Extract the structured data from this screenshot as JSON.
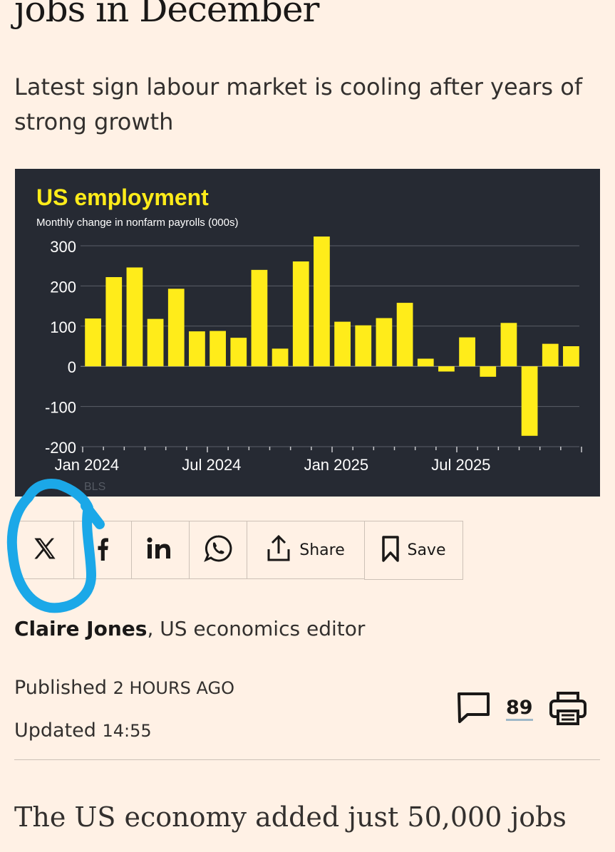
{
  "article": {
    "headline_tail": "jobs in December",
    "standfirst": "Latest sign labour market is cooling after years of strong growth",
    "byline": {
      "author": "Claire Jones",
      "role": ", US economics editor"
    },
    "published_label": "Published",
    "published_time": "2 HOURS AGO",
    "updated_label": "Updated",
    "updated_time": "14:55",
    "comment_count": "89",
    "body_start": "The US economy added just 50,000 jobs"
  },
  "share": {
    "share_label": "Share",
    "save_label": "Save",
    "icons": [
      "x-icon",
      "facebook-icon",
      "linkedin-icon",
      "whatsapp-icon",
      "share-icon",
      "bookmark-icon",
      "comment-icon",
      "print-icon"
    ]
  },
  "colors": {
    "bg": "#fff1e5",
    "chart_bg": "#262a33",
    "bar": "#ffec1a",
    "annotation": "#1ba8e8"
  },
  "chart_data": {
    "type": "bar",
    "title": "US employment",
    "subtitle": "Monthly change in nonfarm payrolls (000s)",
    "source": "BLS",
    "yticks": [
      300,
      200,
      100,
      0,
      -100,
      -200
    ],
    "ylim": [
      -200,
      300
    ],
    "xtick_labels": [
      "Jan 2024",
      "Jul 2024",
      "Jan 2025",
      "Jul 2025"
    ],
    "categories": [
      "2024-01",
      "2024-02",
      "2024-03",
      "2024-04",
      "2024-05",
      "2024-06",
      "2024-07",
      "2024-08",
      "2024-09",
      "2024-10",
      "2024-11",
      "2024-12",
      "2025-01",
      "2025-02",
      "2025-03",
      "2025-04",
      "2025-05",
      "2025-06",
      "2025-07",
      "2025-08",
      "2025-09",
      "2025-10",
      "2025-11",
      "2025-12"
    ],
    "values": [
      119,
      222,
      246,
      118,
      193,
      87,
      88,
      71,
      240,
      44,
      261,
      323,
      111,
      102,
      120,
      158,
      19,
      -13,
      72,
      -26,
      108,
      -173,
      56,
      50
    ]
  }
}
